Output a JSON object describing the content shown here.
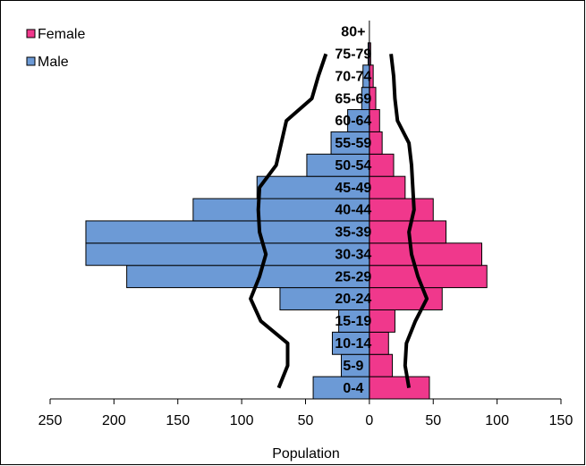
{
  "chart_data": {
    "type": "population-pyramid",
    "categories": [
      "0-4",
      "5-9",
      "10-14",
      "15-19",
      "20-24",
      "25-29",
      "30-34",
      "35-39",
      "40-44",
      "45-49",
      "50-54",
      "55-59",
      "60-64",
      "65-69",
      "70-74",
      "75-79",
      "80+"
    ],
    "series": [
      {
        "name": "Female",
        "color": "#f0388c",
        "side": "right",
        "values": [
          47,
          18,
          15,
          20,
          57,
          92,
          88,
          60,
          50,
          28,
          19,
          10,
          8,
          5,
          3,
          1,
          0
        ]
      },
      {
        "name": "Male",
        "color": "#6c9ad6",
        "side": "left",
        "values": [
          44,
          22,
          29,
          24,
          70,
          190,
          222,
          222,
          138,
          88,
          49,
          30,
          17,
          6,
          5,
          1,
          0
        ]
      }
    ],
    "lines": [
      {
        "side": "left",
        "color": "#000000",
        "values": [
          71,
          64,
          64,
          85,
          93,
          86,
          81,
          86,
          87,
          86,
          73,
          69,
          65,
          45,
          40,
          34,
          null
        ]
      },
      {
        "side": "right",
        "color": "#000000",
        "values": [
          31,
          28,
          29,
          36,
          45,
          38,
          33,
          31,
          35,
          34,
          33,
          31,
          22,
          20,
          19,
          17,
          null
        ]
      }
    ],
    "xlabel": "Population",
    "xlim": [
      -250,
      150
    ],
    "xticks": [
      {
        "value": -250,
        "label": "250"
      },
      {
        "value": -200,
        "label": "200"
      },
      {
        "value": -150,
        "label": "150"
      },
      {
        "value": -100,
        "label": "100"
      },
      {
        "value": -50,
        "label": "50"
      },
      0,
      50,
      100,
      150
    ],
    "legend": "top-left"
  }
}
